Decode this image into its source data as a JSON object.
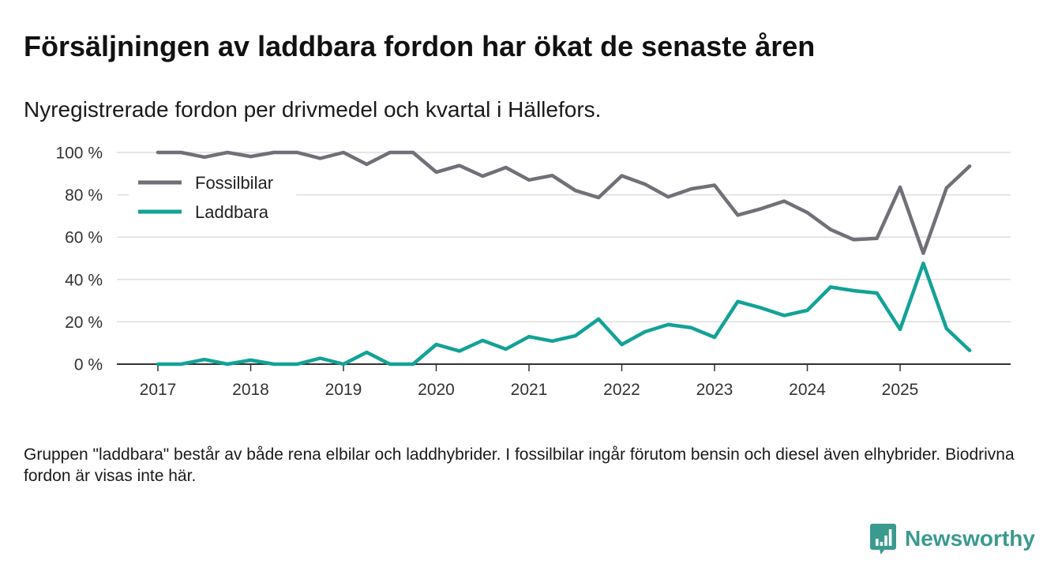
{
  "chart_data": {
    "type": "line",
    "title": "Försäljningen av laddbara fordon har ökat de senaste åren",
    "subtitle": "Nyregistrerade fordon per drivmedel och kvartal i Hällefors.",
    "xlabel": "",
    "ylabel": "",
    "ylim": [
      0,
      100
    ],
    "yticks": [
      0,
      20,
      40,
      60,
      80,
      100
    ],
    "ytick_labels": [
      "0 %",
      "20 %",
      "40 %",
      "60 %",
      "80 %",
      "100 %"
    ],
    "xticks": [
      2017,
      2018,
      2019,
      2020,
      2021,
      2022,
      2023,
      2024,
      2025
    ],
    "xtick_labels": [
      "2017",
      "2018",
      "2019",
      "2020",
      "2021",
      "2022",
      "2023",
      "2024",
      "2025"
    ],
    "grid": true,
    "legend_position": "top-left",
    "x": [
      2017,
      2017.25,
      2017.5,
      2017.75,
      2018,
      2018.25,
      2018.5,
      2018.75,
      2019,
      2019.25,
      2019.5,
      2019.75,
      2020,
      2020.25,
      2020.5,
      2020.75,
      2021,
      2021.25,
      2021.5,
      2021.75,
      2022,
      2022.25,
      2022.5,
      2022.75,
      2023,
      2023.25,
      2023.5,
      2023.75,
      2024,
      2024.25,
      2024.5,
      2024.75,
      2025,
      2025.25,
      2025.5,
      2025.75
    ],
    "series": [
      {
        "name": "Fossilbilar",
        "color": "#707078",
        "values": [
          100,
          100,
          97.8,
          100,
          98.1,
          100,
          100,
          97.2,
          100,
          94.4,
          100,
          100,
          90.7,
          93.8,
          88.8,
          92.9,
          87.0,
          89.1,
          82.0,
          78.7,
          89.0,
          85.0,
          79.0,
          82.8,
          84.5,
          70.4,
          73.4,
          77.0,
          71.6,
          63.6,
          58.8,
          59.4,
          83.6,
          52.4,
          83.2,
          93.5
        ]
      },
      {
        "name": "Laddbara",
        "color": "#13a297",
        "values": [
          0,
          0,
          2.2,
          0,
          1.9,
          0,
          0,
          2.8,
          0,
          5.6,
          0,
          0,
          9.3,
          6.2,
          11.2,
          7.1,
          13.0,
          10.9,
          13.4,
          21.3,
          9.3,
          15.3,
          18.7,
          17.2,
          12.7,
          29.6,
          26.6,
          23.0,
          25.4,
          36.4,
          34.7,
          33.6,
          16.4,
          47.6,
          16.8,
          6.5
        ]
      }
    ]
  },
  "footnote": "Gruppen \"laddbara\" består av både rena elbilar och laddhybrider. I fossilbilar ingår förutom bensin och diesel även elhybrider. Biodrivna fordon är visas inte här.",
  "brand": {
    "name": "Newsworthy",
    "icon": "bar-chart-bubble-icon",
    "color": "#3a9a8e"
  }
}
